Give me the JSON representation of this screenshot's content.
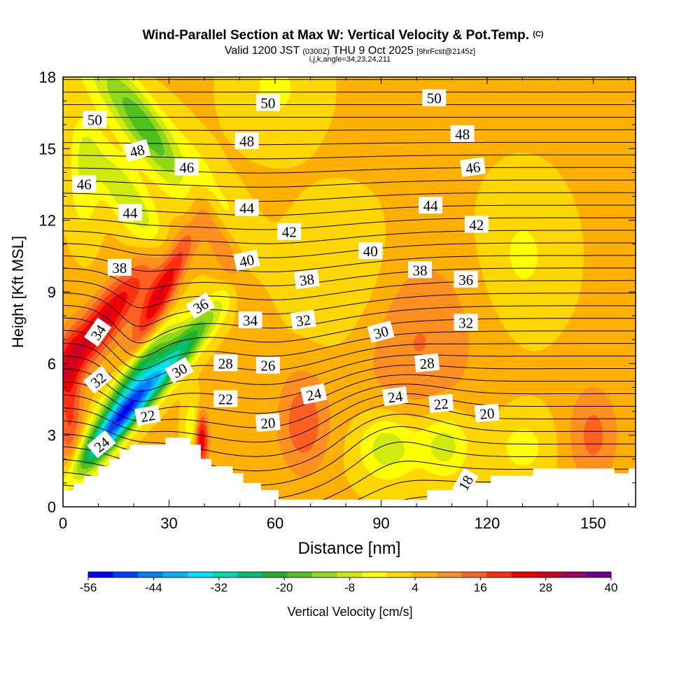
{
  "header": {
    "title": "Wind-Parallel Section at Max W: Vertical Velocity & Pot.Temp.",
    "title_units": "(C)",
    "valid_prefix": "Valid 1200 JST",
    "valid_zulu": "(0300Z)",
    "valid_suffix": "THU 9 Oct 2025",
    "forecast_info": "[9hrFcst@2145z]",
    "indices": "i,j,k,angle=34,23,24,211"
  },
  "chart_data": {
    "type": "heatmap",
    "xlabel": "Distance [nm]",
    "ylabel": "Height [Kft MSL]",
    "xlim": [
      0,
      162
    ],
    "ylim": [
      0,
      18
    ],
    "x_ticks": [
      0,
      30,
      60,
      90,
      120,
      150
    ],
    "y_ticks": [
      0,
      3,
      6,
      9,
      12,
      15,
      18
    ],
    "colorbar": {
      "label": "Vertical Velocity [cm/s]",
      "min": -56,
      "max": 40,
      "tick_labels": [
        "-56",
        "-44",
        "-32",
        "-20",
        "-8",
        "4",
        "16",
        "28",
        "40"
      ],
      "colors": [
        "#0000ff",
        "#0040ff",
        "#0080ff",
        "#00b0ff",
        "#00e0ff",
        "#00d8b0",
        "#00c070",
        "#20b030",
        "#50c020",
        "#90d818",
        "#d0ea10",
        "#ffff00",
        "#ffd700",
        "#ffb000",
        "#ff9020",
        "#ff6020",
        "#ff3010",
        "#f00000",
        "#d00020",
        "#a00060",
        "#700090"
      ]
    },
    "terrain_kft": [
      [
        0,
        0.7
      ],
      [
        3,
        0.7
      ],
      [
        3,
        1.0
      ],
      [
        6,
        1.0
      ],
      [
        6,
        1.3
      ],
      [
        10,
        1.3
      ],
      [
        10,
        1.7
      ],
      [
        13,
        1.7
      ],
      [
        13,
        2.0
      ],
      [
        16,
        2.0
      ],
      [
        16,
        2.4
      ],
      [
        19,
        2.4
      ],
      [
        19,
        2.6
      ],
      [
        29,
        2.6
      ],
      [
        29,
        2.9
      ],
      [
        36,
        2.9
      ],
      [
        36,
        2.6
      ],
      [
        39,
        2.6
      ],
      [
        39,
        2.0
      ],
      [
        42,
        2.0
      ],
      [
        42,
        1.7
      ],
      [
        48,
        1.7
      ],
      [
        48,
        1.4
      ],
      [
        51,
        1.4
      ],
      [
        51,
        1.0
      ],
      [
        56,
        1.0
      ],
      [
        56,
        0.7
      ],
      [
        61,
        0.7
      ],
      [
        61,
        0.3
      ],
      [
        103,
        0.3
      ],
      [
        103,
        0.7
      ],
      [
        115,
        0.7
      ],
      [
        115,
        1.0
      ],
      [
        121,
        1.0
      ],
      [
        121,
        1.3
      ],
      [
        133,
        1.3
      ],
      [
        133,
        1.6
      ],
      [
        156,
        1.6
      ],
      [
        156,
        1.4
      ],
      [
        160,
        1.4
      ],
      [
        160,
        1.6
      ],
      [
        162,
        1.6
      ]
    ],
    "w_features": [
      {
        "x": 16,
        "z": 3.7,
        "w": -52,
        "sx": 3,
        "sz": 1.8,
        "rot": -30
      },
      {
        "x": 21,
        "z": 5.8,
        "w": -20,
        "sx": 2.5,
        "sz": 1.6,
        "rot": -30
      },
      {
        "x": 33,
        "z": 6.4,
        "w": -26,
        "sx": 3,
        "sz": 1.8,
        "rot": -30
      },
      {
        "x": 38,
        "z": 3.3,
        "w": -22,
        "sx": 2,
        "sz": 0.8,
        "rot": 0
      },
      {
        "x": 26,
        "z": 15.5,
        "w": -24,
        "sx": 5,
        "sz": 2.8,
        "rot": 30
      },
      {
        "x": 18,
        "z": 13.0,
        "w": -14,
        "sx": 4,
        "sz": 1.8,
        "rot": 25
      },
      {
        "x": 6,
        "z": 13.8,
        "w": -10,
        "sx": 3,
        "sz": 1.6,
        "rot": 0
      },
      {
        "x": 10,
        "z": 7.5,
        "w": 24,
        "sx": 4,
        "sz": 2.2,
        "rot": -30
      },
      {
        "x": 28,
        "z": 9.0,
        "w": 22,
        "sx": 2.5,
        "sz": 1.8,
        "rot": -20
      },
      {
        "x": 39,
        "z": 3.0,
        "w": 38,
        "sx": 1.5,
        "sz": 0.8,
        "rot": 0
      },
      {
        "x": 40,
        "z": 12.5,
        "w": 12,
        "sx": 3,
        "sz": 3,
        "rot": 20
      },
      {
        "x": 2,
        "z": 4.0,
        "w": 14,
        "sx": 2.5,
        "sz": 2,
        "rot": 0
      },
      {
        "x": 92,
        "z": 2.5,
        "w": -14,
        "sx": 6,
        "sz": 1,
        "rot": 0
      },
      {
        "x": 108,
        "z": 2.6,
        "w": -13,
        "sx": 5,
        "sz": 1,
        "rot": 0
      },
      {
        "x": 130,
        "z": 2.5,
        "w": -7,
        "sx": 6,
        "sz": 1,
        "rot": 0
      },
      {
        "x": 80,
        "z": 9.5,
        "w": -6,
        "sx": 10,
        "sz": 2,
        "rot": 0
      },
      {
        "x": 130,
        "z": 10.5,
        "w": -6,
        "sx": 8,
        "sz": 2,
        "rot": 0
      },
      {
        "x": 68,
        "z": 3.5,
        "w": 12,
        "sx": 5,
        "sz": 1.5,
        "rot": 0
      },
      {
        "x": 100,
        "z": 7.0,
        "w": 9,
        "sx": 12,
        "sz": 2.5,
        "rot": 0
      },
      {
        "x": 150,
        "z": 3.0,
        "w": 10,
        "sx": 5,
        "sz": 1.5,
        "rot": 0
      },
      {
        "x": 60,
        "z": 17.5,
        "w": -6,
        "sx": 8,
        "sz": 1.5,
        "rot": 0
      }
    ],
    "isentrope_values": [
      18,
      19,
      20,
      21,
      22,
      23,
      24,
      25,
      26,
      27,
      28,
      29,
      30,
      31,
      32,
      33,
      34,
      35,
      36,
      37,
      38,
      39,
      40,
      41,
      42,
      43,
      44,
      45,
      46,
      47,
      48,
      49,
      50,
      51,
      52
    ],
    "isentrope_labels": [
      {
        "text": "50",
        "x": 9,
        "z": 16.2,
        "rot": 0
      },
      {
        "text": "50",
        "x": 58,
        "z": 16.9,
        "rot": 0
      },
      {
        "text": "50",
        "x": 105,
        "z": 17.1,
        "rot": 0
      },
      {
        "text": "48",
        "x": 21,
        "z": 14.9,
        "rot": -15
      },
      {
        "text": "48",
        "x": 52,
        "z": 15.3,
        "rot": 0
      },
      {
        "text": "48",
        "x": 113,
        "z": 15.6,
        "rot": 0
      },
      {
        "text": "46",
        "x": 6,
        "z": 13.5,
        "rot": 0
      },
      {
        "text": "46",
        "x": 35,
        "z": 14.2,
        "rot": 0
      },
      {
        "text": "46",
        "x": 116,
        "z": 14.2,
        "rot": -8
      },
      {
        "text": "44",
        "x": 19,
        "z": 12.3,
        "rot": 0
      },
      {
        "text": "44",
        "x": 52,
        "z": 12.5,
        "rot": 0
      },
      {
        "text": "44",
        "x": 104,
        "z": 12.6,
        "rot": 0
      },
      {
        "text": "42",
        "x": 64,
        "z": 11.5,
        "rot": 0
      },
      {
        "text": "42",
        "x": 117,
        "z": 11.8,
        "rot": 0
      },
      {
        "text": "40",
        "x": 52,
        "z": 10.3,
        "rot": -12
      },
      {
        "text": "40",
        "x": 87,
        "z": 10.7,
        "rot": 0
      },
      {
        "text": "38",
        "x": 16,
        "z": 10.0,
        "rot": 0
      },
      {
        "text": "38",
        "x": 69,
        "z": 9.5,
        "rot": -8
      },
      {
        "text": "38",
        "x": 101,
        "z": 9.9,
        "rot": 0
      },
      {
        "text": "36",
        "x": 39,
        "z": 8.4,
        "rot": -30
      },
      {
        "text": "36",
        "x": 114,
        "z": 9.5,
        "rot": 0
      },
      {
        "text": "34",
        "x": 10,
        "z": 7.3,
        "rot": -55
      },
      {
        "text": "34",
        "x": 53,
        "z": 7.8,
        "rot": 0
      },
      {
        "text": "32",
        "x": 68,
        "z": 7.8,
        "rot": -8
      },
      {
        "text": "32",
        "x": 114,
        "z": 7.7,
        "rot": 0
      },
      {
        "text": "30",
        "x": 90,
        "z": 7.3,
        "rot": -15
      },
      {
        "text": "30",
        "x": 33,
        "z": 5.7,
        "rot": -30
      },
      {
        "text": "28",
        "x": 46,
        "z": 6.0,
        "rot": 0
      },
      {
        "text": "28",
        "x": 103,
        "z": 6.0,
        "rot": -5
      },
      {
        "text": "26",
        "x": 58,
        "z": 5.9,
        "rot": 0
      },
      {
        "text": "32",
        "x": 10,
        "z": 5.3,
        "rot": -40
      },
      {
        "text": "24",
        "x": 11,
        "z": 2.6,
        "rot": -40
      },
      {
        "text": "24",
        "x": 71,
        "z": 4.7,
        "rot": -12
      },
      {
        "text": "24",
        "x": 94,
        "z": 4.6,
        "rot": -8
      },
      {
        "text": "22",
        "x": 24,
        "z": 3.8,
        "rot": -10
      },
      {
        "text": "22",
        "x": 46,
        "z": 4.5,
        "rot": 0
      },
      {
        "text": "22",
        "x": 107,
        "z": 4.3,
        "rot": -5
      },
      {
        "text": "20",
        "x": 58,
        "z": 3.5,
        "rot": -5
      },
      {
        "text": "20",
        "x": 120,
        "z": 3.9,
        "rot": -5
      },
      {
        "text": "18",
        "x": 114,
        "z": 1.0,
        "rot": -60
      }
    ]
  }
}
